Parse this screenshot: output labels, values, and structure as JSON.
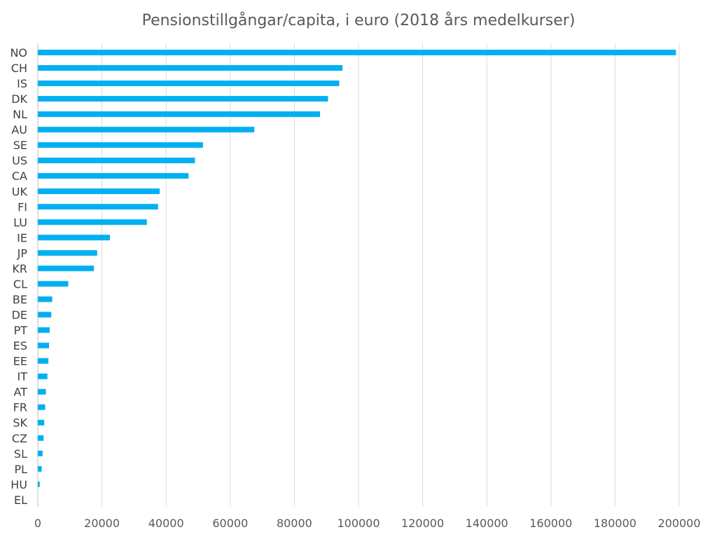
{
  "chart_data": {
    "type": "bar",
    "orientation": "horizontal",
    "title": "Pensionstillgångar/capita, i euro (2018 års medelkurser)",
    "categories": [
      "NO",
      "CH",
      "IS",
      "DK",
      "NL",
      "AU",
      "SE",
      "US",
      "CA",
      "UK",
      "FI",
      "LU",
      "IE",
      "JP",
      "KR",
      "CL",
      "BE",
      "DE",
      "PT",
      "ES",
      "EE",
      "IT",
      "AT",
      "FR",
      "SK",
      "CZ",
      "SL",
      "PL",
      "HU",
      "EL"
    ],
    "values": [
      199000,
      95000,
      94000,
      90500,
      88000,
      67500,
      51500,
      49000,
      47000,
      38000,
      37500,
      34000,
      22500,
      18500,
      17500,
      9500,
      4500,
      4200,
      3700,
      3500,
      3300,
      3000,
      2500,
      2300,
      2000,
      1800,
      1500,
      1200,
      600,
      0
    ],
    "xlim": [
      0,
      200000
    ],
    "x_ticks": [
      "0",
      "20000",
      "40000",
      "60000",
      "80000",
      "100000",
      "120000",
      "140000",
      "160000",
      "180000",
      "200000"
    ],
    "grid": true,
    "legend": "none",
    "bar_color": "#00B0F0"
  }
}
